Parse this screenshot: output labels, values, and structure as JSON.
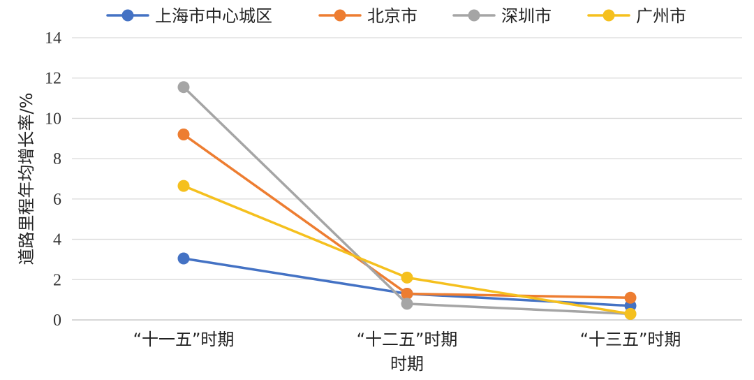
{
  "chart_data": {
    "type": "line",
    "title": "",
    "xlabel": "时期",
    "ylabel": "道路里程年均增长率/%",
    "categories": [
      "“十一五”时期",
      "“十二五”时期",
      "“十三五”时期"
    ],
    "ylim": [
      0,
      14
    ],
    "yticks": [
      0,
      2,
      4,
      6,
      8,
      10,
      12,
      14
    ],
    "grid": true,
    "legend_position": "top",
    "series": [
      {
        "name": "上海市中心城区",
        "color": "#4472C4",
        "values": [
          3.05,
          1.3,
          0.7
        ]
      },
      {
        "name": "北京市",
        "color": "#ED7D31",
        "values": [
          9.2,
          1.3,
          1.1
        ]
      },
      {
        "name": "深圳市",
        "color": "#A5A5A5",
        "values": [
          11.55,
          0.8,
          0.3
        ]
      },
      {
        "name": "广州市",
        "color": "#F5C01E",
        "values": [
          6.65,
          2.1,
          0.3
        ]
      }
    ]
  }
}
